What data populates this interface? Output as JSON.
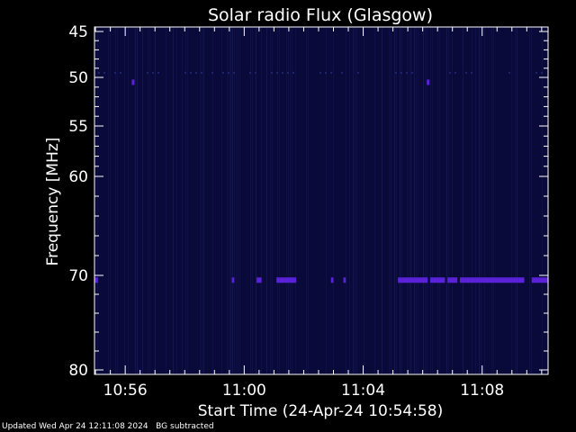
{
  "chart_data": {
    "type": "heatmap",
    "title": "Solar radio Flux (Glasgow)",
    "xlabel": "Start Time (24-Apr-24 10:54:58)",
    "ylabel": "Frequency [MHz]",
    "x_range": [
      "10:54:58",
      "11:10:13"
    ],
    "y_range": [
      45,
      80
    ],
    "x_ticks": [
      "10:56",
      "11:00",
      "11:04",
      "11:08"
    ],
    "y_ticks": [
      45,
      50,
      55,
      60,
      70,
      80
    ],
    "background_color": "#0a0a3a",
    "signal_color": "#5a22d8",
    "features": [
      {
        "freq": 50.5,
        "time": "10:56:15",
        "label": ""
      },
      {
        "freq": 50.5,
        "time": "11:06:10",
        "label": ""
      }
    ],
    "emission_band": {
      "freq": 70.5,
      "segments": [
        [
          "10:54:58",
          "10:55:05"
        ],
        [
          "10:59:35",
          "10:59:40"
        ],
        [
          "11:00:25",
          "11:00:35"
        ],
        [
          "11:01:05",
          "11:01:45"
        ],
        [
          "11:02:55",
          "11:03:00"
        ],
        [
          "11:03:20",
          "11:03:25"
        ],
        [
          "11:05:10",
          "11:06:10"
        ],
        [
          "11:06:15",
          "11:06:45"
        ],
        [
          "11:06:50",
          "11:07:10"
        ],
        [
          "11:07:15",
          "11:09:25"
        ],
        [
          "11:09:40",
          "11:10:13"
        ]
      ]
    },
    "grid": false,
    "legend": "none"
  },
  "footer": {
    "text": "Updated Wed Apr 24 12:11:08 2024   BG subtracted"
  }
}
